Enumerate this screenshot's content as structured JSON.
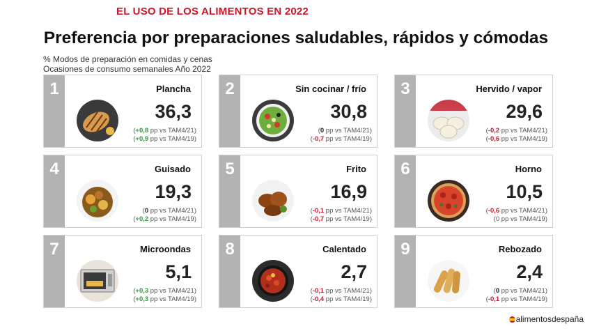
{
  "header": {
    "kicker": "EL USO DE LOS ALIMENTOS EN 2022",
    "title": "Preferencia por preparaciones saludables,  rápidos y cómodas",
    "subtitle_line1": "% Modos de preparación en comidas y cenas",
    "subtitle_line2": "Ocasiones de consumo semanales Año 2022"
  },
  "cards": [
    {
      "rank": "1",
      "label": "Plancha",
      "value": "36,3",
      "icon": "grilled-chicken-icon",
      "c1_open": "(",
      "c1_val": "+0,8",
      "c1_rest": " pp vs TAM4/21)",
      "c1_tone": "pos",
      "c2_open": "(",
      "c2_val": "+0,9",
      "c2_rest": " pp vs TAM4/19)",
      "c2_tone": "pos"
    },
    {
      "rank": "2",
      "label": "Sin cocinar / frío",
      "value": "30,8",
      "icon": "salad-bowl-icon",
      "c1_open": "(",
      "c1_val": "0",
      "c1_rest": " pp vs TAM4/21)",
      "c1_tone": "zero",
      "c2_open": "(",
      "c2_val": "-0,7",
      "c2_rest": " pp vs TAM4/19)",
      "c2_tone": "neg"
    },
    {
      "rank": "3",
      "label": "Hervido / vapor",
      "value": "29,6",
      "icon": "dumplings-icon",
      "c1_open": "(",
      "c1_val": "-0,2",
      "c1_rest": " pp vs TAM4/21)",
      "c1_tone": "neg",
      "c2_open": "(",
      "c2_val": "-0,6",
      "c2_rest": " pp vs TAM4/19)",
      "c2_tone": "neg"
    },
    {
      "rank": "4",
      "label": "Guisado",
      "value": "19,3",
      "icon": "stew-icon",
      "c1_open": "(",
      "c1_val": "0",
      "c1_rest": " pp vs TAM4/21)",
      "c1_tone": "zero",
      "c2_open": "(",
      "c2_val": "+0,2",
      "c2_rest": " pp vs TAM4/19)",
      "c2_tone": "pos"
    },
    {
      "rank": "5",
      "label": "Frito",
      "value": "16,9",
      "icon": "fried-chicken-icon",
      "c1_open": "(",
      "c1_val": "-0,1",
      "c1_rest": " pp vs TAM4/21)",
      "c1_tone": "neg",
      "c2_open": "(",
      "c2_val": "-0,7",
      "c2_rest": " pp vs TAM4/19)",
      "c2_tone": "neg"
    },
    {
      "rank": "6",
      "label": "Horno",
      "value": "10,5",
      "icon": "pizza-icon",
      "c1_open": "(",
      "c1_val": "-0,6",
      "c1_rest": " pp vs TAM4/21)",
      "c1_tone": "neg",
      "c2_open": "(",
      "c2_val": "0",
      "c2_rest": " pp vs TAM4/19)",
      "c2_tone": "plain"
    },
    {
      "rank": "7",
      "label": "Microondas",
      "value": "5,1",
      "icon": "microwave-icon",
      "c1_open": "(",
      "c1_val": "+0,3",
      "c1_rest": " pp vs TAM4/21)",
      "c1_tone": "pos",
      "c2_open": "(",
      "c2_val": "+0,3",
      "c2_rest": " pp vs TAM4/19)",
      "c2_tone": "pos"
    },
    {
      "rank": "8",
      "label": "Calentado",
      "value": "2,7",
      "icon": "pan-icon",
      "c1_open": "(",
      "c1_val": "-0,1",
      "c1_rest": " pp vs TAM4/21)",
      "c1_tone": "neg",
      "c2_open": "(",
      "c2_val": "-0,4",
      "c2_rest": " pp vs TAM4/19)",
      "c2_tone": "neg"
    },
    {
      "rank": "9",
      "label": "Rebozado",
      "value": "2,4",
      "icon": "spring-rolls-icon",
      "c1_open": "(",
      "c1_val": "0",
      "c1_rest": " pp vs TAM4/21)",
      "c1_tone": "zero",
      "c2_open": "(",
      "c2_val": "-0,1",
      "c2_rest": " pp vs TAM4/19)",
      "c2_tone": "neg"
    }
  ],
  "chart_data": {
    "type": "table",
    "title": "Preferencia por preparaciones saludables,  rápidos y cómodas",
    "columns": [
      "Modo de preparación",
      "% 2022",
      "vs TAM4/21 (pp)",
      "vs TAM4/19 (pp)"
    ],
    "rows": [
      [
        "Plancha",
        36.3,
        0.8,
        0.9
      ],
      [
        "Sin cocinar / frío",
        30.8,
        0,
        -0.7
      ],
      [
        "Hervido / vapor",
        29.6,
        -0.2,
        -0.6
      ],
      [
        "Guisado",
        19.3,
        0,
        0.2
      ],
      [
        "Frito",
        16.9,
        -0.1,
        -0.7
      ],
      [
        "Horno",
        10.5,
        -0.6,
        0
      ],
      [
        "Microondas",
        5.1,
        0.3,
        0.3
      ],
      [
        "Calentado",
        2.7,
        -0.1,
        -0.4
      ],
      [
        "Rebozado",
        2.4,
        0,
        -0.1
      ]
    ]
  },
  "colors": {
    "accent": "#d0152a",
    "positive": "#2e9e3a",
    "negative": "#d0152a",
    "rank_bg": "#b3b3b3"
  },
  "footer": {
    "logo_text": "alimentosdespaña",
    "logo_icon": "spain-flag-icon"
  }
}
